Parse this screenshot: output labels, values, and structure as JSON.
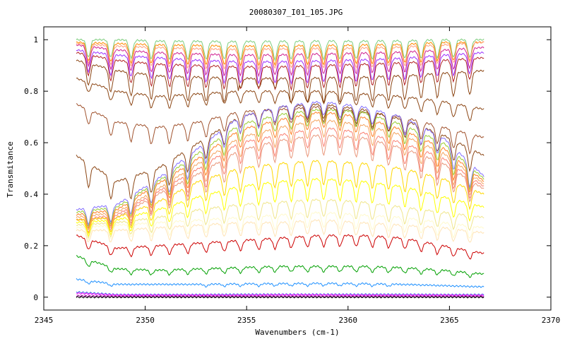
{
  "chart_data": {
    "type": "line",
    "title": "20080307_I01_105.JPG",
    "xlabel": "Wavenumbers (cm-1)",
    "ylabel": "Transmitance",
    "xlim": [
      2345,
      2370
    ],
    "ylim": [
      -0.05,
      1.05
    ],
    "x_ticks": [
      "2345",
      "2350",
      "2355",
      "2360",
      "2365",
      "2370"
    ],
    "y_ticks": [
      "0",
      "0.2",
      "0.4",
      "0.6",
      "0.8",
      "1"
    ],
    "data_x_range": [
      2346.6,
      2366.7
    ],
    "grid": false,
    "legend": "none",
    "series": [
      {
        "color": "#7ccd7c",
        "y": [
          1.0,
          1.0,
          0.995,
          0.994,
          0.993,
          0.994,
          0.995,
          0.995,
          0.996,
          1.0,
          1.0
        ]
      },
      {
        "color": "#ff8c00",
        "y": [
          0.99,
          0.985,
          0.98,
          0.978,
          0.975,
          0.977,
          0.978,
          0.98,
          0.982,
          0.99,
          0.99
        ]
      },
      {
        "color": "#ffa07a",
        "y": [
          0.985,
          0.975,
          0.97,
          0.965,
          0.962,
          0.965,
          0.966,
          0.968,
          0.972,
          0.98,
          0.99
        ]
      },
      {
        "color": "#d02090",
        "y": [
          0.98,
          0.96,
          0.95,
          0.945,
          0.94,
          0.942,
          0.945,
          0.948,
          0.952,
          0.96,
          0.97
        ]
      },
      {
        "color": "#9b30ff",
        "y": [
          0.96,
          0.94,
          0.93,
          0.92,
          0.915,
          0.915,
          0.918,
          0.922,
          0.928,
          0.94,
          0.95
        ]
      },
      {
        "color": "#b22222",
        "y": [
          0.95,
          0.92,
          0.905,
          0.9,
          0.895,
          0.895,
          0.9,
          0.905,
          0.91,
          0.92,
          0.93
        ]
      },
      {
        "color": "#8b4513",
        "y": [
          0.92,
          0.88,
          0.86,
          0.855,
          0.85,
          0.85,
          0.852,
          0.855,
          0.86,
          0.87,
          0.88
        ]
      },
      {
        "color": "#8b4513",
        "y": [
          0.85,
          0.8,
          0.78,
          0.79,
          0.8,
          0.8,
          0.8,
          0.79,
          0.78,
          0.76,
          0.73
        ]
      },
      {
        "color": "#a0522d",
        "y": [
          0.75,
          0.68,
          0.66,
          0.68,
          0.72,
          0.73,
          0.74,
          0.72,
          0.7,
          0.66,
          0.62
        ]
      },
      {
        "color": "#8b4513",
        "y": [
          0.55,
          0.45,
          0.5,
          0.6,
          0.7,
          0.74,
          0.75,
          0.73,
          0.69,
          0.63,
          0.55
        ]
      },
      {
        "color": "#8470ff",
        "y": [
          0.34,
          0.36,
          0.46,
          0.58,
          0.7,
          0.74,
          0.76,
          0.74,
          0.7,
          0.62,
          0.47
        ]
      },
      {
        "color": "#9acd32",
        "y": [
          0.33,
          0.35,
          0.45,
          0.56,
          0.67,
          0.71,
          0.73,
          0.72,
          0.67,
          0.6,
          0.46
        ]
      },
      {
        "color": "#ff7f24",
        "y": [
          0.32,
          0.34,
          0.44,
          0.54,
          0.65,
          0.69,
          0.72,
          0.7,
          0.65,
          0.58,
          0.45
        ]
      },
      {
        "color": "#f4a460",
        "y": [
          0.31,
          0.33,
          0.42,
          0.52,
          0.62,
          0.66,
          0.69,
          0.67,
          0.63,
          0.56,
          0.44
        ]
      },
      {
        "color": "#fa8072",
        "y": [
          0.3,
          0.32,
          0.41,
          0.5,
          0.6,
          0.63,
          0.66,
          0.64,
          0.6,
          0.54,
          0.43
        ]
      },
      {
        "color": "#e9967a",
        "y": [
          0.3,
          0.31,
          0.4,
          0.48,
          0.57,
          0.61,
          0.63,
          0.62,
          0.58,
          0.52,
          0.42
        ]
      },
      {
        "color": "#ffd700",
        "y": [
          0.3,
          0.31,
          0.37,
          0.45,
          0.5,
          0.52,
          0.53,
          0.52,
          0.5,
          0.46,
          0.4
        ]
      },
      {
        "color": "#ffff00",
        "y": [
          0.29,
          0.3,
          0.34,
          0.39,
          0.43,
          0.45,
          0.46,
          0.45,
          0.43,
          0.39,
          0.35
        ]
      },
      {
        "color": "#f0e68c",
        "y": [
          0.28,
          0.29,
          0.31,
          0.34,
          0.36,
          0.37,
          0.38,
          0.37,
          0.35,
          0.33,
          0.31
        ]
      },
      {
        "color": "#fffacd",
        "y": [
          0.27,
          0.28,
          0.29,
          0.3,
          0.31,
          0.32,
          0.33,
          0.32,
          0.31,
          0.29,
          0.27
        ]
      },
      {
        "color": "#ffe4b5",
        "y": [
          0.26,
          0.26,
          0.27,
          0.28,
          0.29,
          0.29,
          0.3,
          0.29,
          0.28,
          0.27,
          0.25
        ]
      },
      {
        "color": "#cd0000",
        "y": [
          0.24,
          0.19,
          0.2,
          0.21,
          0.22,
          0.23,
          0.24,
          0.24,
          0.23,
          0.2,
          0.17
        ]
      },
      {
        "color": "#00a000",
        "y": [
          0.16,
          0.11,
          0.105,
          0.11,
          0.115,
          0.12,
          0.12,
          0.12,
          0.115,
          0.105,
          0.09
        ]
      },
      {
        "color": "#1e90ff",
        "y": [
          0.07,
          0.05,
          0.05,
          0.05,
          0.052,
          0.053,
          0.054,
          0.053,
          0.05,
          0.045,
          0.04
        ]
      },
      {
        "color": "#4169e1",
        "y": [
          0.02,
          0.01,
          0.01,
          0.01,
          0.011,
          0.011,
          0.011,
          0.011,
          0.011,
          0.01,
          0.01
        ]
      },
      {
        "color": "#ff00ff",
        "y": [
          0.015,
          0.008,
          0.008,
          0.008,
          0.008,
          0.009,
          0.009,
          0.008,
          0.008,
          0.008,
          0.007
        ]
      },
      {
        "color": "#8b008b",
        "y": [
          0.005,
          0.003,
          0.003,
          0.003,
          0.003,
          0.003,
          0.003,
          0.003,
          0.003,
          0.003,
          0.003
        ]
      },
      {
        "color": "#000000",
        "y": [
          0.0,
          0.0,
          0.0,
          0.0,
          0.0,
          0.0,
          0.0,
          0.0,
          0.0,
          0.0,
          0.0
        ]
      }
    ],
    "absorption_lines": [
      2347.2,
      2348.3,
      2349.3,
      2350.3,
      2351.2,
      2352.1,
      2353.0,
      2353.9,
      2354.7,
      2355.6,
      2356.4,
      2357.2,
      2358.0,
      2358.8,
      2359.6,
      2360.4,
      2361.2,
      2362.0,
      2362.8,
      2363.6,
      2364.4,
      2365.2,
      2366.0
    ]
  }
}
